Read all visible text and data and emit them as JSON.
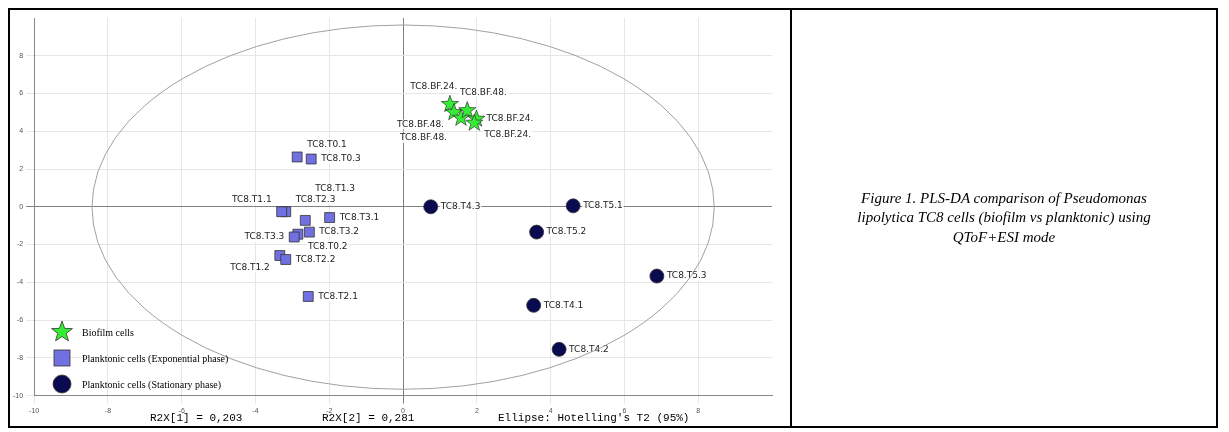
{
  "chart_data": {
    "type": "scatter",
    "annotations": [
      "R2X[1] = 0,203",
      "R2X[2] = 0,281",
      "Ellipse: Hotelling's T2 (95%)",
      "Figure 1. PLS-DA comparison of Pseudomonas lipolytica TC8 cells (biofilm vs planktonic) using QToF+ESI mode"
    ],
    "xlim": [
      -10,
      10
    ],
    "ylim": [
      -10,
      10
    ],
    "xticks": [
      -10,
      -8,
      -6,
      -4,
      -2,
      0,
      2,
      4,
      6,
      8
    ],
    "yticks": [
      -10,
      -8,
      -6,
      -4,
      -2,
      0,
      2,
      4,
      6,
      8
    ],
    "grid": true,
    "legend": "bottom left",
    "series": [
      {
        "name": "Biofilm cells",
        "color": "#33ee33",
        "marker": "star",
        "x": [
          1.27,
          1.38,
          1.57,
          1.74,
          1.99,
          1.93
        ],
        "values": [
          5.43,
          5.0,
          4.7,
          5.1,
          4.65,
          4.44
        ],
        "value_labels": [
          "TC8.BF.48.",
          "TC8.BF.48.",
          "TC8.BF.48.",
          "TC8.BF.24.",
          "TC8.BF.24.",
          "TC8.BF.24."
        ]
      },
      {
        "name": "Planktonic cells (Exponential phase)",
        "color": "#7070e0",
        "marker": "square",
        "x": [
          -2.87,
          -2.49,
          -3.18,
          -3.29,
          -1.99,
          -2.65,
          -2.54,
          -2.85,
          -2.95,
          -3.34,
          -3.18,
          -2.57
        ],
        "values": [
          2.64,
          2.53,
          -0.26,
          -0.26,
          -0.57,
          -0.72,
          -1.34,
          -1.45,
          -1.6,
          -2.58,
          -2.79,
          -4.75
        ],
        "value_labels": [
          "TC8.T0.1",
          "TC8.T0.3",
          "TC8.T2.3",
          "TC8.T1.1",
          "TC8.T3.1",
          "TC8.T1.3",
          "TC8.T3.2",
          "TC8.T0.2",
          "TC8.T3.3",
          "TC8.T1.2",
          "TC8.T2.2",
          "TC8.T2.1"
        ]
      },
      {
        "name": "Planktonic cells (Stationary phase)",
        "color": "#0a0a50",
        "marker": "circle",
        "x": [
          0.75,
          4.61,
          3.62,
          6.88,
          3.54,
          4.23
        ],
        "values": [
          0,
          0.05,
          -1.34,
          -3.67,
          -5.22,
          -7.55
        ],
        "value_labels": [
          "TC8.T4.3",
          "TC8.T5.1",
          "TC8.T5.2",
          "TC8.T5.3",
          "TC8.T4.1",
          "TC8.T4.2"
        ]
      }
    ]
  }
}
